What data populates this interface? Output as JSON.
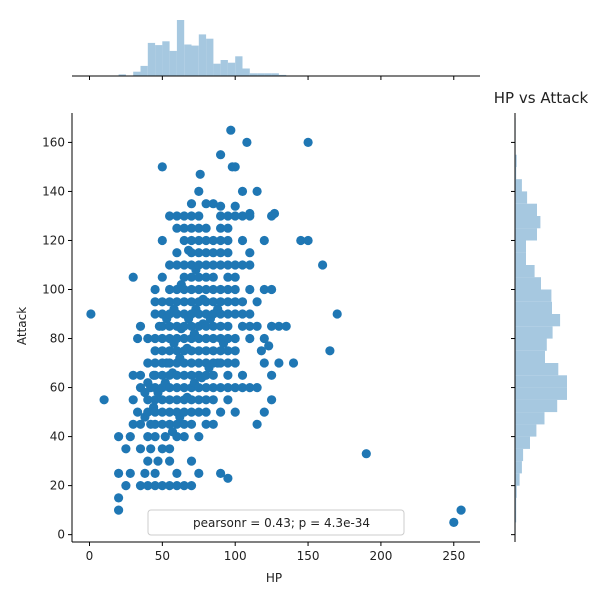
{
  "chart_data": {
    "type": "scatter",
    "title": "HP vs Attack",
    "xlabel": "HP",
    "ylabel": "Attack",
    "xlim": [
      -12,
      268
    ],
    "ylim": [
      -3,
      172
    ],
    "x_ticks": [
      0,
      50,
      100,
      150,
      200,
      250
    ],
    "y_ticks": [
      0,
      20,
      40,
      60,
      80,
      100,
      120,
      140,
      160
    ],
    "point_color": "#1f77b4",
    "hist_color": "#a6c8e0",
    "annotation": "pearsonr = 0.43; p = 4.3e-34",
    "legend_position": "lower-center",
    "grid": false,
    "points": [
      [
        1,
        90
      ],
      [
        10,
        55
      ],
      [
        20,
        10
      ],
      [
        20,
        15
      ],
      [
        20,
        25
      ],
      [
        20,
        40
      ],
      [
        25,
        20
      ],
      [
        25,
        35
      ],
      [
        28,
        25
      ],
      [
        28,
        40
      ],
      [
        30,
        45
      ],
      [
        30,
        55
      ],
      [
        30,
        65
      ],
      [
        30,
        105
      ],
      [
        33,
        50
      ],
      [
        33,
        80
      ],
      [
        35,
        20
      ],
      [
        35,
        35
      ],
      [
        35,
        45
      ],
      [
        35,
        60
      ],
      [
        35,
        65
      ],
      [
        35,
        85
      ],
      [
        38,
        25
      ],
      [
        38,
        48
      ],
      [
        38,
        58
      ],
      [
        40,
        20
      ],
      [
        40,
        30
      ],
      [
        40,
        40
      ],
      [
        40,
        50
      ],
      [
        40,
        55
      ],
      [
        40,
        62
      ],
      [
        40,
        70
      ],
      [
        40,
        80
      ],
      [
        42,
        35
      ],
      [
        42,
        45
      ],
      [
        42,
        60
      ],
      [
        44,
        52
      ],
      [
        44,
        65
      ],
      [
        45,
        20
      ],
      [
        45,
        25
      ],
      [
        45,
        40
      ],
      [
        45,
        45
      ],
      [
        45,
        50
      ],
      [
        45,
        55
      ],
      [
        45,
        60
      ],
      [
        45,
        65
      ],
      [
        45,
        70
      ],
      [
        45,
        75
      ],
      [
        45,
        80
      ],
      [
        45,
        90
      ],
      [
        45,
        95
      ],
      [
        45,
        100
      ],
      [
        47,
        30
      ],
      [
        47,
        58
      ],
      [
        48,
        85
      ],
      [
        50,
        20
      ],
      [
        50,
        35
      ],
      [
        50,
        45
      ],
      [
        50,
        50
      ],
      [
        50,
        55
      ],
      [
        50,
        60
      ],
      [
        50,
        65
      ],
      [
        50,
        70
      ],
      [
        50,
        75
      ],
      [
        50,
        80
      ],
      [
        50,
        85
      ],
      [
        50,
        90
      ],
      [
        50,
        95
      ],
      [
        50,
        105
      ],
      [
        50,
        120
      ],
      [
        50,
        150
      ],
      [
        52,
        40
      ],
      [
        52,
        62
      ],
      [
        53,
        70
      ],
      [
        53,
        88
      ],
      [
        55,
        20
      ],
      [
        55,
        30
      ],
      [
        55,
        35
      ],
      [
        55,
        45
      ],
      [
        55,
        50
      ],
      [
        55,
        55
      ],
      [
        55,
        60
      ],
      [
        55,
        65
      ],
      [
        55,
        70
      ],
      [
        55,
        75
      ],
      [
        55,
        80
      ],
      [
        55,
        85
      ],
      [
        55,
        90
      ],
      [
        55,
        95
      ],
      [
        55,
        100
      ],
      [
        55,
        110
      ],
      [
        55,
        130
      ],
      [
        57,
        42
      ],
      [
        57,
        66
      ],
      [
        58,
        78
      ],
      [
        58,
        92
      ],
      [
        60,
        20
      ],
      [
        60,
        25
      ],
      [
        60,
        40
      ],
      [
        60,
        45
      ],
      [
        60,
        50
      ],
      [
        60,
        55
      ],
      [
        60,
        60
      ],
      [
        60,
        65
      ],
      [
        60,
        70
      ],
      [
        60,
        75
      ],
      [
        60,
        80
      ],
      [
        60,
        85
      ],
      [
        60,
        90
      ],
      [
        60,
        95
      ],
      [
        60,
        100
      ],
      [
        60,
        110
      ],
      [
        60,
        115
      ],
      [
        60,
        125
      ],
      [
        60,
        130
      ],
      [
        62,
        48
      ],
      [
        62,
        72
      ],
      [
        63,
        84
      ],
      [
        63,
        102
      ],
      [
        65,
        20
      ],
      [
        65,
        40
      ],
      [
        65,
        45
      ],
      [
        65,
        50
      ],
      [
        65,
        55
      ],
      [
        65,
        60
      ],
      [
        65,
        65
      ],
      [
        65,
        70
      ],
      [
        65,
        75
      ],
      [
        65,
        80
      ],
      [
        65,
        85
      ],
      [
        65,
        90
      ],
      [
        65,
        95
      ],
      [
        65,
        100
      ],
      [
        65,
        105
      ],
      [
        65,
        110
      ],
      [
        65,
        120
      ],
      [
        65,
        125
      ],
      [
        65,
        130
      ],
      [
        67,
        56
      ],
      [
        67,
        76
      ],
      [
        68,
        88
      ],
      [
        68,
        116
      ],
      [
        70,
        20
      ],
      [
        70,
        30
      ],
      [
        70,
        45
      ],
      [
        70,
        50
      ],
      [
        70,
        55
      ],
      [
        70,
        60
      ],
      [
        70,
        65
      ],
      [
        70,
        70
      ],
      [
        70,
        75
      ],
      [
        70,
        80
      ],
      [
        70,
        85
      ],
      [
        70,
        90
      ],
      [
        70,
        95
      ],
      [
        70,
        100
      ],
      [
        70,
        105
      ],
      [
        70,
        110
      ],
      [
        70,
        115
      ],
      [
        70,
        120
      ],
      [
        70,
        125
      ],
      [
        70,
        130
      ],
      [
        70,
        135
      ],
      [
        72,
        62
      ],
      [
        72,
        82
      ],
      [
        73,
        92
      ],
      [
        73,
        108
      ],
      [
        75,
        25
      ],
      [
        75,
        40
      ],
      [
        75,
        50
      ],
      [
        75,
        55
      ],
      [
        75,
        60
      ],
      [
        75,
        65
      ],
      [
        75,
        70
      ],
      [
        75,
        75
      ],
      [
        75,
        80
      ],
      [
        75,
        85
      ],
      [
        75,
        90
      ],
      [
        75,
        95
      ],
      [
        75,
        100
      ],
      [
        75,
        105
      ],
      [
        75,
        110
      ],
      [
        75,
        115
      ],
      [
        75,
        120
      ],
      [
        75,
        125
      ],
      [
        75,
        130
      ],
      [
        75,
        140
      ],
      [
        76,
        147
      ],
      [
        77,
        64
      ],
      [
        78,
        86
      ],
      [
        78,
        96
      ],
      [
        80,
        45
      ],
      [
        80,
        50
      ],
      [
        80,
        55
      ],
      [
        80,
        60
      ],
      [
        80,
        65
      ],
      [
        80,
        70
      ],
      [
        80,
        75
      ],
      [
        80,
        80
      ],
      [
        80,
        85
      ],
      [
        80,
        90
      ],
      [
        80,
        95
      ],
      [
        80,
        100
      ],
      [
        80,
        105
      ],
      [
        80,
        110
      ],
      [
        80,
        115
      ],
      [
        80,
        120
      ],
      [
        80,
        125
      ],
      [
        80,
        135
      ],
      [
        82,
        68
      ],
      [
        83,
        88
      ],
      [
        85,
        45
      ],
      [
        85,
        55
      ],
      [
        85,
        60
      ],
      [
        85,
        65
      ],
      [
        85,
        70
      ],
      [
        85,
        75
      ],
      [
        85,
        80
      ],
      [
        85,
        85
      ],
      [
        85,
        90
      ],
      [
        85,
        95
      ],
      [
        85,
        100
      ],
      [
        85,
        105
      ],
      [
        85,
        110
      ],
      [
        85,
        115
      ],
      [
        85,
        120
      ],
      [
        85,
        135
      ],
      [
        88,
        70
      ],
      [
        88,
        92
      ],
      [
        90,
        25
      ],
      [
        90,
        50
      ],
      [
        90,
        60
      ],
      [
        90,
        70
      ],
      [
        90,
        75
      ],
      [
        90,
        80
      ],
      [
        90,
        85
      ],
      [
        90,
        90
      ],
      [
        90,
        95
      ],
      [
        90,
        100
      ],
      [
        90,
        110
      ],
      [
        90,
        115
      ],
      [
        90,
        120
      ],
      [
        90,
        125
      ],
      [
        90,
        130
      ],
      [
        90,
        134
      ],
      [
        90,
        155
      ],
      [
        92,
        78
      ],
      [
        95,
        23
      ],
      [
        95,
        55
      ],
      [
        95,
        60
      ],
      [
        95,
        65
      ],
      [
        95,
        70
      ],
      [
        95,
        75
      ],
      [
        95,
        80
      ],
      [
        95,
        85
      ],
      [
        95,
        90
      ],
      [
        95,
        95
      ],
      [
        95,
        100
      ],
      [
        95,
        105
      ],
      [
        95,
        110
      ],
      [
        95,
        115
      ],
      [
        95,
        120
      ],
      [
        95,
        125
      ],
      [
        95,
        130
      ],
      [
        97,
        165
      ],
      [
        98,
        150
      ],
      [
        100,
        50
      ],
      [
        100,
        60
      ],
      [
        100,
        70
      ],
      [
        100,
        75
      ],
      [
        100,
        80
      ],
      [
        100,
        90
      ],
      [
        100,
        95
      ],
      [
        100,
        100
      ],
      [
        100,
        105
      ],
      [
        100,
        110
      ],
      [
        100,
        130
      ],
      [
        100,
        134
      ],
      [
        100,
        150
      ],
      [
        105,
        60
      ],
      [
        105,
        65
      ],
      [
        105,
        85
      ],
      [
        105,
        90
      ],
      [
        105,
        95
      ],
      [
        105,
        110
      ],
      [
        105,
        120
      ],
      [
        105,
        130
      ],
      [
        105,
        140
      ],
      [
        108,
        160
      ],
      [
        110,
        60
      ],
      [
        110,
        80
      ],
      [
        110,
        85
      ],
      [
        110,
        90
      ],
      [
        110,
        100
      ],
      [
        110,
        110
      ],
      [
        110,
        115
      ],
      [
        110,
        130
      ],
      [
        110,
        131
      ],
      [
        115,
        45
      ],
      [
        115,
        60
      ],
      [
        115,
        85
      ],
      [
        115,
        95
      ],
      [
        115,
        140
      ],
      [
        118,
        75
      ],
      [
        120,
        50
      ],
      [
        120,
        70
      ],
      [
        120,
        80
      ],
      [
        120,
        100
      ],
      [
        120,
        120
      ],
      [
        123,
        77
      ],
      [
        125,
        55
      ],
      [
        125,
        65
      ],
      [
        125,
        85
      ],
      [
        125,
        100
      ],
      [
        125,
        130
      ],
      [
        127,
        131
      ],
      [
        130,
        70
      ],
      [
        130,
        85
      ],
      [
        135,
        85
      ],
      [
        140,
        70
      ],
      [
        145,
        120
      ],
      [
        150,
        120
      ],
      [
        150,
        160
      ],
      [
        160,
        110
      ],
      [
        165,
        75
      ],
      [
        170,
        90
      ],
      [
        190,
        33
      ],
      [
        250,
        5
      ],
      [
        255,
        10
      ]
    ],
    "marginal_x": {
      "bin_edges": [
        0,
        5,
        10,
        15,
        20,
        25,
        30,
        35,
        40,
        45,
        50,
        55,
        60,
        65,
        70,
        75,
        80,
        85,
        90,
        95,
        100,
        105,
        110,
        115,
        120,
        125,
        130,
        135,
        140,
        145,
        150,
        155,
        160,
        165,
        170,
        175,
        180,
        185,
        190,
        195,
        200,
        205,
        210,
        215,
        220,
        225,
        230,
        235,
        240,
        245,
        250,
        255,
        260
      ],
      "counts": [
        0,
        0,
        0,
        1,
        3,
        1,
        8,
        19,
        62,
        58,
        65,
        47,
        105,
        59,
        57,
        78,
        70,
        23,
        30,
        25,
        37,
        14,
        5,
        5,
        5,
        5,
        2,
        1,
        1,
        1,
        1,
        1,
        0,
        0,
        1,
        0,
        0,
        0,
        0,
        0,
        0,
        0,
        0,
        0,
        0,
        0,
        0,
        0,
        0,
        0,
        0,
        1
      ]
    },
    "marginal_y": {
      "bin_edges": [
        0,
        5,
        10,
        15,
        20,
        25,
        30,
        35,
        40,
        45,
        50,
        55,
        60,
        65,
        70,
        75,
        80,
        85,
        90,
        95,
        100,
        105,
        110,
        115,
        120,
        125,
        130,
        135,
        140,
        145,
        150,
        155,
        160,
        165,
        170
      ],
      "counts": [
        1,
        2,
        2,
        3,
        8,
        12,
        14,
        26,
        37,
        51,
        73,
        90,
        90,
        75,
        52,
        55,
        65,
        78,
        64,
        63,
        45,
        34,
        19,
        19,
        38,
        44,
        38,
        21,
        12,
        2,
        3,
        1,
        1,
        1
      ]
    }
  }
}
